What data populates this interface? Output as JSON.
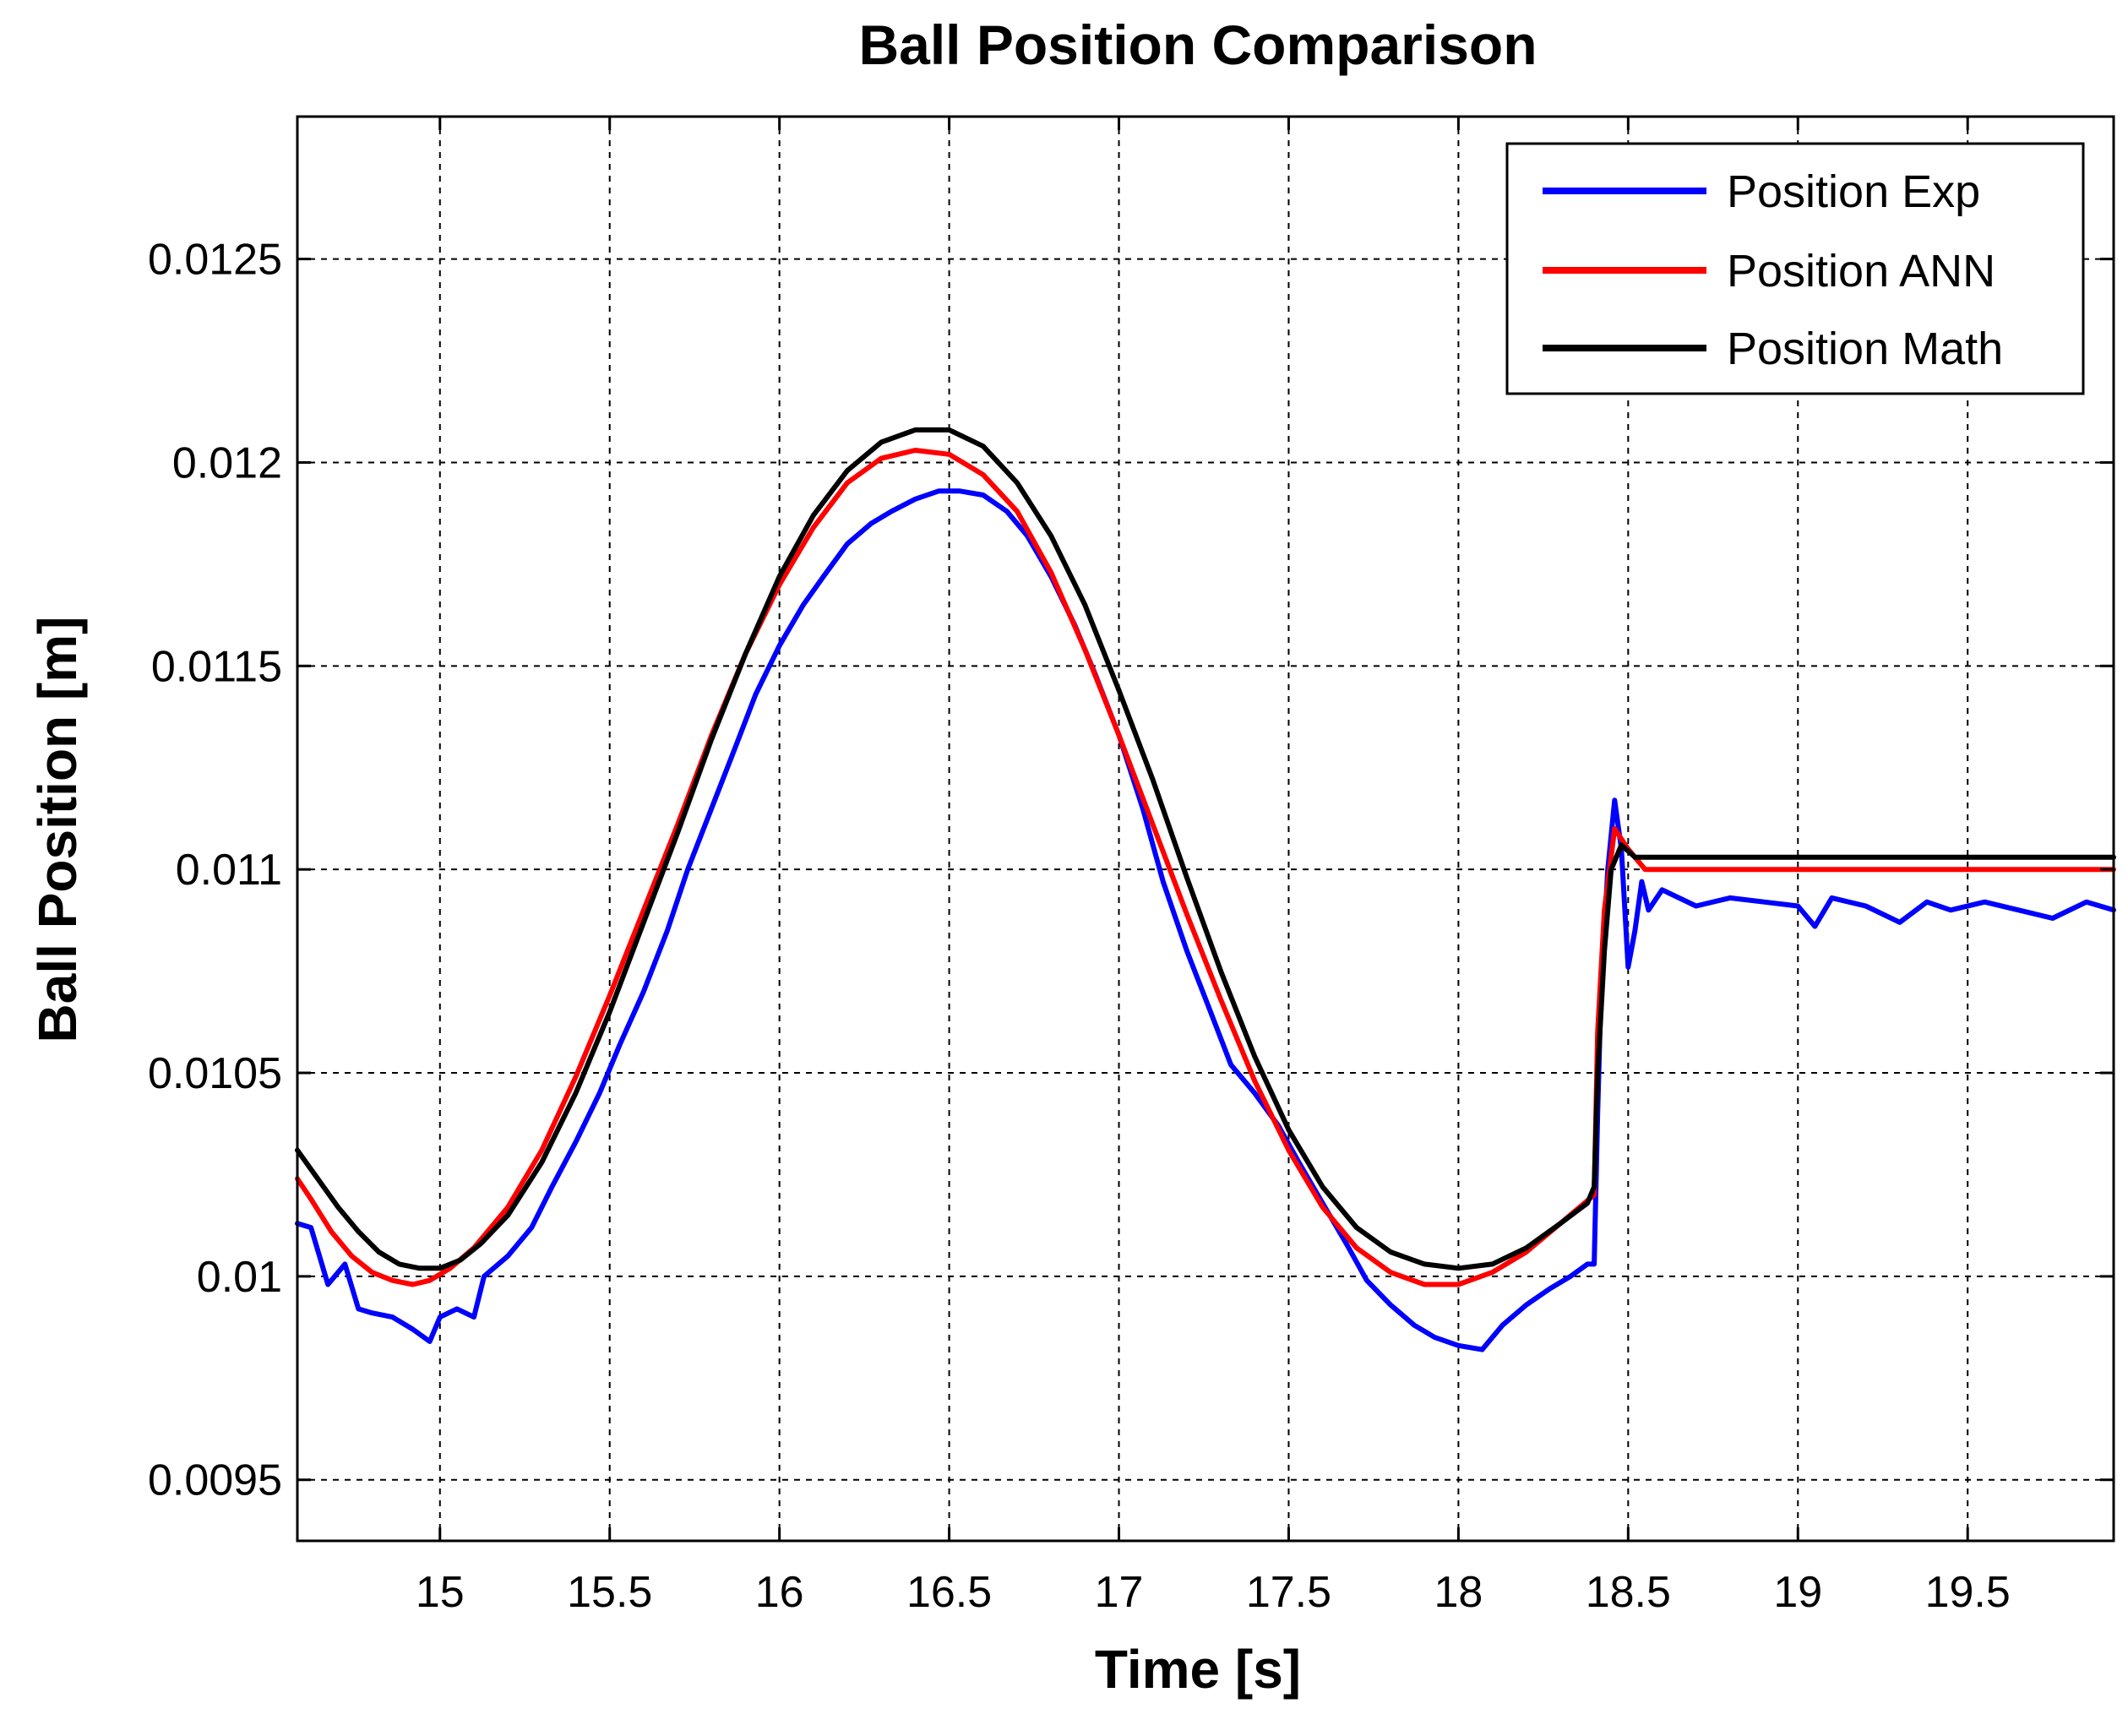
{
  "chart_data": {
    "type": "line",
    "title": "Ball Position Comparison",
    "xlabel": "Time [s]",
    "ylabel": "Ball Position [m]",
    "xlim": [
      14.58,
      19.93
    ],
    "ylim": [
      0.00935,
      0.01285
    ],
    "grid": true,
    "legend_position": "top-right",
    "x_ticks": [
      15,
      15.5,
      16,
      16.5,
      17,
      17.5,
      18,
      18.5,
      19,
      19.5
    ],
    "x_tick_labels": [
      "15",
      "15.5",
      "16",
      "16.5",
      "17",
      "17.5",
      "18",
      "18.5",
      "19",
      "19.5"
    ],
    "y_ticks": [
      0.0095,
      0.01,
      0.0105,
      0.011,
      0.0115,
      0.012,
      0.0125
    ],
    "y_tick_labels": [
      "0.0095",
      "0.01",
      "0.0105",
      "0.011",
      "0.0115",
      "0.012",
      "0.0125"
    ],
    "series": [
      {
        "name": "Position Exp",
        "color": "#0000ff",
        "points": [
          [
            14.58,
            0.01013
          ],
          [
            14.62,
            0.01012
          ],
          [
            14.67,
            0.00998
          ],
          [
            14.72,
            0.01003
          ],
          [
            14.76,
            0.00992
          ],
          [
            14.8,
            0.00991
          ],
          [
            14.86,
            0.0099
          ],
          [
            14.92,
            0.00987
          ],
          [
            14.97,
            0.00984
          ],
          [
            15.0,
            0.0099
          ],
          [
            15.05,
            0.00992
          ],
          [
            15.1,
            0.0099
          ],
          [
            15.13,
            0.01
          ],
          [
            15.2,
            0.01005
          ],
          [
            15.27,
            0.01012
          ],
          [
            15.33,
            0.01022
          ],
          [
            15.4,
            0.01033
          ],
          [
            15.47,
            0.01045
          ],
          [
            15.53,
            0.01057
          ],
          [
            15.6,
            0.0107
          ],
          [
            15.67,
            0.01085
          ],
          [
            15.73,
            0.011
          ],
          [
            15.8,
            0.01115
          ],
          [
            15.87,
            0.0113
          ],
          [
            15.93,
            0.01143
          ],
          [
            16.0,
            0.01155
          ],
          [
            16.07,
            0.01165
          ],
          [
            16.13,
            0.01172
          ],
          [
            16.2,
            0.0118
          ],
          [
            16.27,
            0.01185
          ],
          [
            16.33,
            0.01188
          ],
          [
            16.4,
            0.01191
          ],
          [
            16.47,
            0.01193
          ],
          [
            16.53,
            0.01193
          ],
          [
            16.6,
            0.01192
          ],
          [
            16.67,
            0.01188
          ],
          [
            16.73,
            0.01182
          ],
          [
            16.8,
            0.01172
          ],
          [
            16.87,
            0.0116
          ],
          [
            16.93,
            0.01148
          ],
          [
            17.0,
            0.01133
          ],
          [
            17.07,
            0.01115
          ],
          [
            17.13,
            0.01097
          ],
          [
            17.2,
            0.0108
          ],
          [
            17.27,
            0.01065
          ],
          [
            17.33,
            0.01052
          ],
          [
            17.4,
            0.01045
          ],
          [
            17.47,
            0.01037
          ],
          [
            17.53,
            0.01028
          ],
          [
            17.6,
            0.01018
          ],
          [
            17.67,
            0.01008
          ],
          [
            17.73,
            0.00999
          ],
          [
            17.8,
            0.00993
          ],
          [
            17.87,
            0.00988
          ],
          [
            17.93,
            0.00985
          ],
          [
            18.0,
            0.00983
          ],
          [
            18.07,
            0.00982
          ],
          [
            18.13,
            0.00988
          ],
          [
            18.2,
            0.00993
          ],
          [
            18.27,
            0.00997
          ],
          [
            18.33,
            0.01
          ],
          [
            18.38,
            0.01003
          ],
          [
            18.4,
            0.01003
          ],
          [
            18.41,
            0.0104
          ],
          [
            18.42,
            0.0107
          ],
          [
            18.44,
            0.011
          ],
          [
            18.46,
            0.01117
          ],
          [
            18.48,
            0.01105
          ],
          [
            18.5,
            0.01076
          ],
          [
            18.52,
            0.01085
          ],
          [
            18.54,
            0.01097
          ],
          [
            18.56,
            0.0109
          ],
          [
            18.6,
            0.01095
          ],
          [
            18.7,
            0.01091
          ],
          [
            18.8,
            0.01093
          ],
          [
            18.9,
            0.01092
          ],
          [
            19.0,
            0.01091
          ],
          [
            19.05,
            0.01086
          ],
          [
            19.1,
            0.01093
          ],
          [
            19.2,
            0.01091
          ],
          [
            19.3,
            0.01087
          ],
          [
            19.38,
            0.01092
          ],
          [
            19.45,
            0.0109
          ],
          [
            19.55,
            0.01092
          ],
          [
            19.65,
            0.0109
          ],
          [
            19.75,
            0.01088
          ],
          [
            19.85,
            0.01092
          ],
          [
            19.93,
            0.0109
          ]
        ]
      },
      {
        "name": "Position ANN",
        "color": "#ff0000",
        "points": [
          [
            14.58,
            0.01024
          ],
          [
            14.62,
            0.01019
          ],
          [
            14.68,
            0.01011
          ],
          [
            14.74,
            0.01005
          ],
          [
            14.8,
            0.01001
          ],
          [
            14.86,
            0.00999
          ],
          [
            14.92,
            0.00998
          ],
          [
            14.97,
            0.00999
          ],
          [
            15.03,
            0.01002
          ],
          [
            15.1,
            0.01007
          ],
          [
            15.2,
            0.01017
          ],
          [
            15.3,
            0.01031
          ],
          [
            15.4,
            0.01049
          ],
          [
            15.5,
            0.01069
          ],
          [
            15.6,
            0.0109
          ],
          [
            15.7,
            0.01111
          ],
          [
            15.8,
            0.01133
          ],
          [
            15.9,
            0.01153
          ],
          [
            16.0,
            0.0117
          ],
          [
            16.1,
            0.01184
          ],
          [
            16.2,
            0.01195
          ],
          [
            16.3,
            0.01201
          ],
          [
            16.4,
            0.01203
          ],
          [
            16.5,
            0.01202
          ],
          [
            16.6,
            0.01197
          ],
          [
            16.7,
            0.01188
          ],
          [
            16.8,
            0.01173
          ],
          [
            16.9,
            0.01154
          ],
          [
            17.0,
            0.01133
          ],
          [
            17.1,
            0.01111
          ],
          [
            17.2,
            0.01089
          ],
          [
            17.3,
            0.01068
          ],
          [
            17.4,
            0.01048
          ],
          [
            17.5,
            0.01031
          ],
          [
            17.6,
            0.01017
          ],
          [
            17.7,
            0.01007
          ],
          [
            17.8,
            0.01001
          ],
          [
            17.9,
            0.00998
          ],
          [
            18.0,
            0.00998
          ],
          [
            18.1,
            0.01001
          ],
          [
            18.2,
            0.01006
          ],
          [
            18.3,
            0.01013
          ],
          [
            18.4,
            0.0102
          ],
          [
            18.41,
            0.0106
          ],
          [
            18.43,
            0.0109
          ],
          [
            18.46,
            0.0111
          ],
          [
            18.5,
            0.01105
          ],
          [
            18.55,
            0.011
          ],
          [
            18.6,
            0.011
          ],
          [
            19.0,
            0.011
          ],
          [
            19.5,
            0.011
          ],
          [
            19.93,
            0.011
          ]
        ]
      },
      {
        "name": "Position Math",
        "color": "#000000",
        "points": [
          [
            14.58,
            0.01031
          ],
          [
            14.64,
            0.01024
          ],
          [
            14.7,
            0.01017
          ],
          [
            14.76,
            0.01011
          ],
          [
            14.82,
            0.01006
          ],
          [
            14.88,
            0.01003
          ],
          [
            14.94,
            0.01002
          ],
          [
            15.0,
            0.01002
          ],
          [
            15.06,
            0.01004
          ],
          [
            15.12,
            0.01008
          ],
          [
            15.2,
            0.01015
          ],
          [
            15.3,
            0.01028
          ],
          [
            15.4,
            0.01045
          ],
          [
            15.5,
            0.01065
          ],
          [
            15.6,
            0.01087
          ],
          [
            15.7,
            0.01109
          ],
          [
            15.8,
            0.01132
          ],
          [
            15.9,
            0.01153
          ],
          [
            16.0,
            0.01172
          ],
          [
            16.1,
            0.01187
          ],
          [
            16.2,
            0.01198
          ],
          [
            16.3,
            0.01205
          ],
          [
            16.4,
            0.01208
          ],
          [
            16.5,
            0.01208
          ],
          [
            16.6,
            0.01204
          ],
          [
            16.7,
            0.01195
          ],
          [
            16.8,
            0.01182
          ],
          [
            16.9,
            0.01165
          ],
          [
            17.0,
            0.01144
          ],
          [
            17.1,
            0.01122
          ],
          [
            17.2,
            0.01098
          ],
          [
            17.3,
            0.01075
          ],
          [
            17.4,
            0.01054
          ],
          [
            17.5,
            0.01036
          ],
          [
            17.6,
            0.01022
          ],
          [
            17.7,
            0.01012
          ],
          [
            17.8,
            0.01006
          ],
          [
            17.9,
            0.01003
          ],
          [
            18.0,
            0.01002
          ],
          [
            18.1,
            0.01003
          ],
          [
            18.2,
            0.01007
          ],
          [
            18.3,
            0.01013
          ],
          [
            18.38,
            0.01018
          ],
          [
            18.4,
            0.01022
          ],
          [
            18.41,
            0.0105
          ],
          [
            18.43,
            0.0108
          ],
          [
            18.45,
            0.011
          ],
          [
            18.48,
            0.01106
          ],
          [
            18.52,
            0.01103
          ],
          [
            18.6,
            0.01103
          ],
          [
            19.0,
            0.01103
          ],
          [
            19.5,
            0.01103
          ],
          [
            19.93,
            0.01103
          ]
        ]
      }
    ]
  }
}
